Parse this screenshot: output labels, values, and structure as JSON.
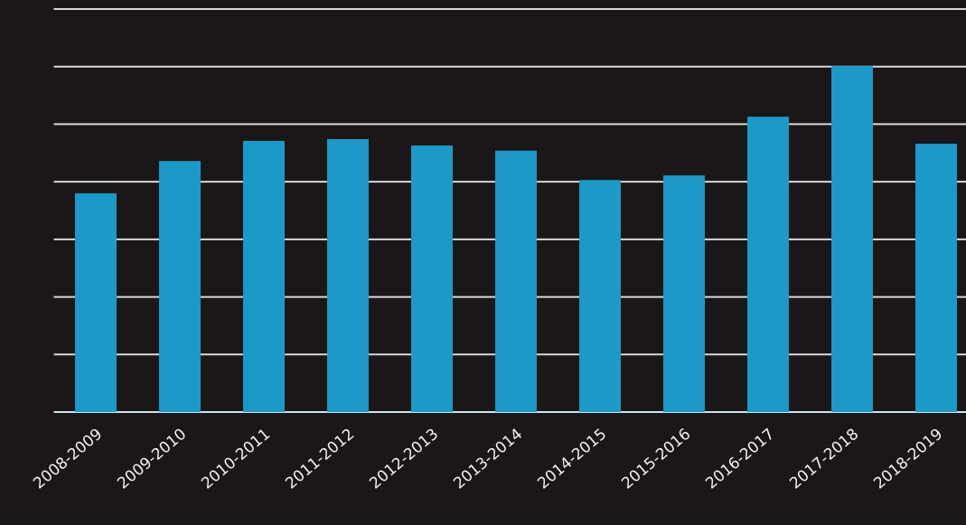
{
  "chart_data": {
    "type": "bar",
    "categories": [
      "2008-2009",
      "2009-2010",
      "2010-2011",
      "2011-2012",
      "2012-2013",
      "2013-2014",
      "2014-2015",
      "2015-2016",
      "2016-2017",
      "2017-2018",
      "2018-2019"
    ],
    "values": [
      3.8,
      4.36,
      4.71,
      4.74,
      4.63,
      4.54,
      4.03,
      4.11,
      5.13,
      6.01,
      4.66
    ],
    "color": "#1b9ac8",
    "ylim": [
      0,
      7
    ],
    "yticks": [
      0,
      1,
      2,
      3,
      4,
      5,
      6,
      7
    ],
    "grid": true
  }
}
